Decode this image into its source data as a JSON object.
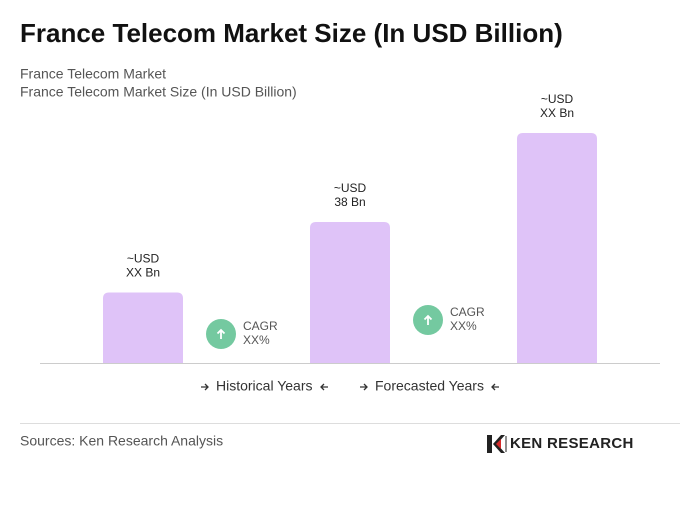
{
  "chart_data": {
    "type": "bar",
    "title": "France Telecom Market Size (In USD Billion)",
    "subtitles": [
      "France Telecom Market",
      "France Telecom Market Size (In USD Billion)"
    ],
    "categories": [
      null,
      null,
      null
    ],
    "values": [
      19,
      38,
      62
    ],
    "value_labels": [
      [
        "~USD",
        "XX Bn"
      ],
      [
        "~USD",
        "38 Bn"
      ],
      [
        "~USD",
        "XX Bn"
      ]
    ],
    "color": "#dfc3f8",
    "cagr_labels": [
      [
        "CAGR",
        "XX%"
      ],
      [
        "CAGR",
        "XX%"
      ]
    ],
    "cagr_color": "#74c9a0",
    "legend": [
      "Historical Years",
      "Forecasted Years"
    ],
    "source": "Sources: Ken Research Analysis",
    "logo": "KEN RESEARCH"
  }
}
